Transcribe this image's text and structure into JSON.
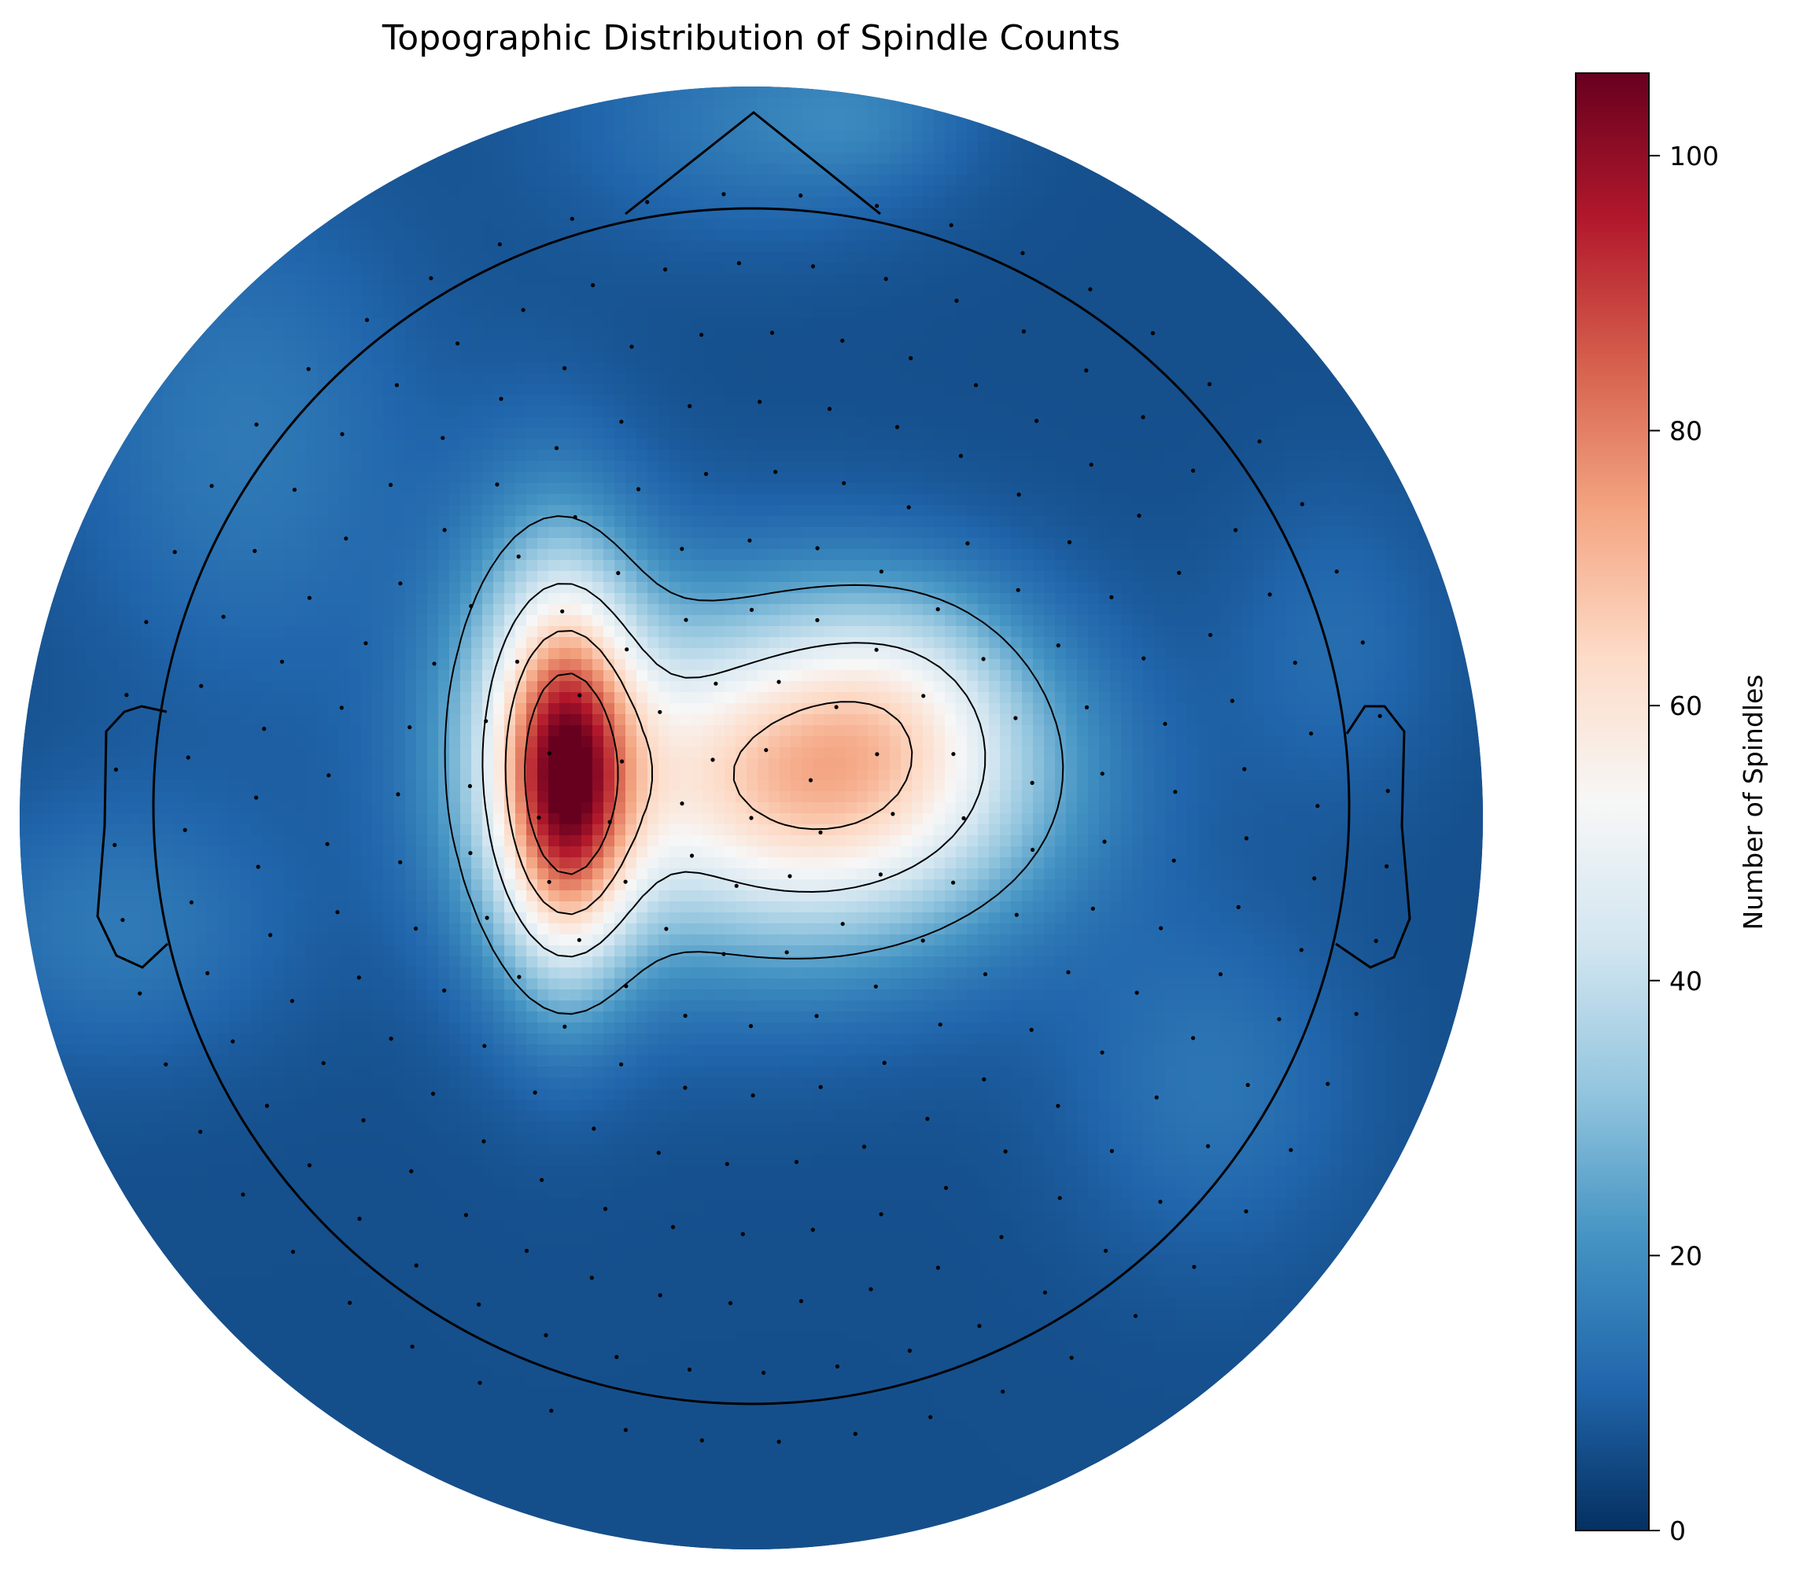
{
  "chart_data": {
    "type": "heatmap",
    "title": "Topographic Distribution of Spindle Counts",
    "colorbar": {
      "label": "Number of Spindles",
      "range": [
        0,
        106
      ],
      "ticks": [
        0,
        20,
        40,
        60,
        80,
        100
      ],
      "colormap": "RdBu_r",
      "colors": [
        "#053061",
        "#2166ac",
        "#4393c3",
        "#92c5de",
        "#d1e5f0",
        "#f7f7f7",
        "#fddbc7",
        "#f4a582",
        "#d6604d",
        "#b2182b",
        "#67001f"
      ]
    },
    "head_outline": true,
    "contour_levels": [
      5,
      25,
      45,
      65,
      85
    ],
    "hotspots": [
      {
        "region": "left-central",
        "peak": 106
      },
      {
        "region": "central-right",
        "peak": 72
      },
      {
        "region": "midline-central",
        "peak": 68
      },
      {
        "region": "frontal-midline",
        "peak": 28
      },
      {
        "region": "left-temporal",
        "peak": 20
      },
      {
        "region": "right-posterior",
        "peak": 20
      },
      {
        "region": "frontal-right",
        "peak": 24
      }
    ]
  }
}
